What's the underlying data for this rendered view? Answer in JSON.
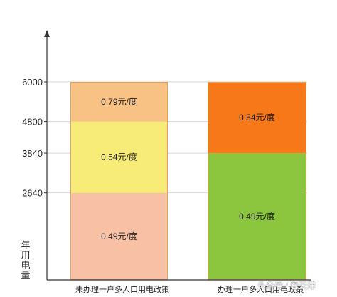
{
  "chart_data": {
    "type": "bar",
    "stacked": true,
    "categories": [
      "未办理一户多人口用电政策",
      "办理一户多人口用电政策"
    ],
    "ylabel": "年用电量",
    "ylim": [
      0,
      7600
    ],
    "yticks": [
      6000,
      4800,
      3840,
      2640
    ],
    "grid": true,
    "bars": [
      {
        "category": "未办理一户多人口用电政策",
        "segments": [
          {
            "from": 0,
            "to": 2640,
            "label": "0.49元/度",
            "color": "#f8c0a4"
          },
          {
            "from": 2640,
            "to": 4800,
            "label": "0.54元/度",
            "color": "#f7ec78"
          },
          {
            "from": 4800,
            "to": 6000,
            "label": "0.79元/度",
            "color": "#f9c285"
          }
        ]
      },
      {
        "category": "办理一户多人口用电政策",
        "segments": [
          {
            "from": 0,
            "to": 3840,
            "label": "0.49元/度",
            "color": "#8cc63e"
          },
          {
            "from": 3840,
            "to": 6000,
            "label": "0.54元/度",
            "color": "#f67818"
          }
        ]
      }
    ]
  },
  "watermark": "头条号 / 看天津"
}
